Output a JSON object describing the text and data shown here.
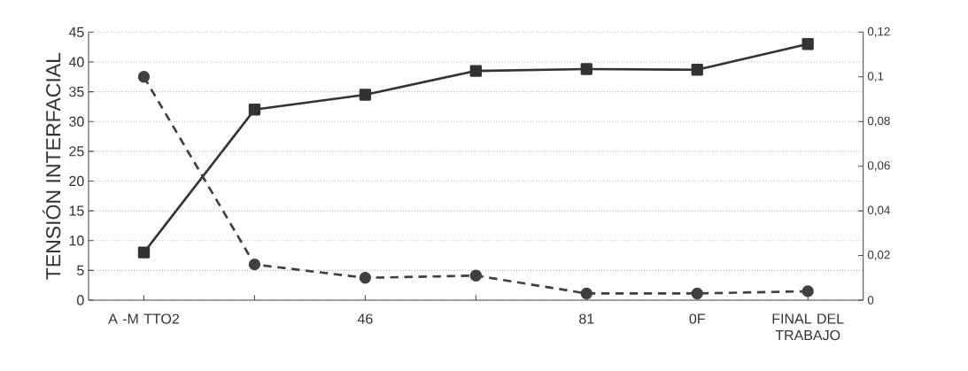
{
  "chart_data": {
    "type": "line",
    "ylabel": "TENSIÓN INTERFACIAL",
    "categories": [
      "A -M TTO2",
      null,
      "46",
      null,
      "81",
      "0F",
      "FINAL DEL TRABAJO"
    ],
    "series": [
      {
        "color": "#333333",
        "marker": "square",
        "line_style": "solid",
        "values": [
          8,
          32,
          34.5,
          38.5,
          38.8,
          38.7,
          43
        ]
      },
      {
        "color": "#404040",
        "marker": "circle",
        "line_style": "dashed",
        "axis": "y2",
        "values": [
          0.1,
          0.016,
          0.01,
          0.011,
          0.003,
          0.003,
          0.004
        ]
      }
    ],
    "ylim": [
      0,
      45
    ],
    "yticks": [
      0,
      5,
      10,
      15,
      20,
      25,
      30,
      35,
      40,
      45
    ],
    "y2lim": [
      0,
      0.12
    ],
    "y2ticks": [
      0,
      {
        "value": 0.02,
        "label": "0,02"
      },
      {
        "value": 0.04,
        "label": "0,04"
      },
      {
        "value": 0.06,
        "label": "0,06"
      },
      {
        "value": 0.08,
        "label": "0,08"
      },
      {
        "value": 0.1,
        "label": "0,1"
      },
      {
        "value": 0.12,
        "label": "0,12"
      }
    ],
    "grid": "y"
  }
}
